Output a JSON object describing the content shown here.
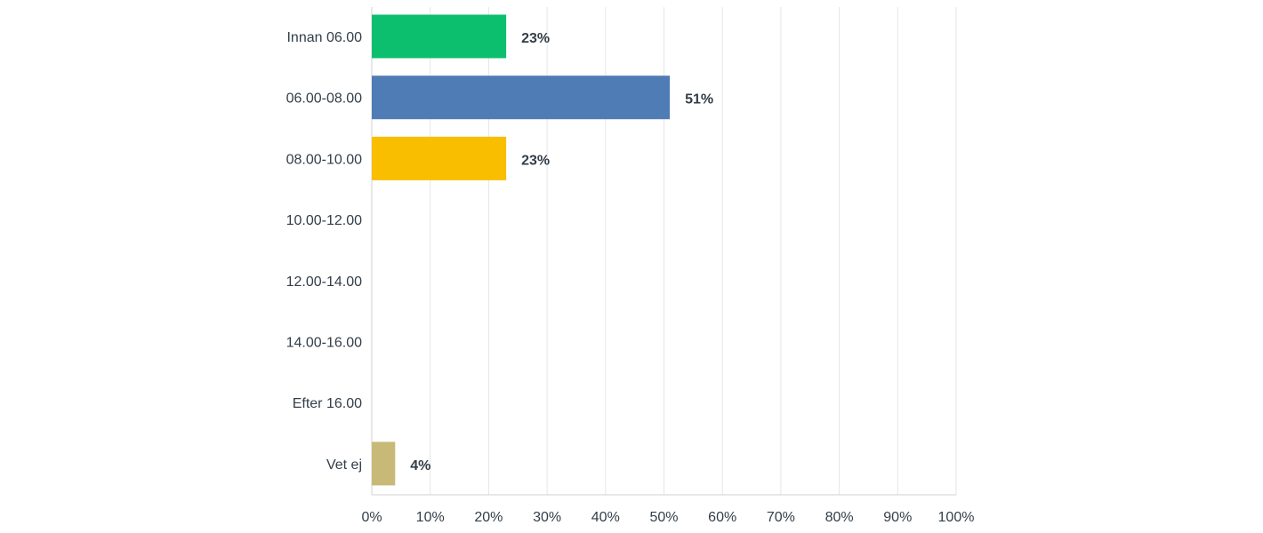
{
  "chart_data": {
    "type": "bar",
    "orientation": "horizontal",
    "categories": [
      "Innan 06.00",
      "06.00-08.00",
      "08.00-10.00",
      "10.00-12.00",
      "12.00-14.00",
      "14.00-16.00",
      "Efter 16.00",
      "Vet ej"
    ],
    "values": [
      23,
      51,
      23,
      0,
      0,
      0,
      0,
      4
    ],
    "data_labels": [
      "23%",
      "51%",
      "23%",
      "",
      "",
      "",
      "",
      "4%"
    ],
    "colors": [
      "#0bbf6e",
      "#507cb6",
      "#f9be00",
      "#6bc8cd",
      "#ff8b4f",
      "#7d5ba6",
      "#dd5a7a",
      "#c8b979"
    ],
    "xlim": [
      0,
      100
    ],
    "x_ticks": [
      "0%",
      "10%",
      "20%",
      "30%",
      "40%",
      "50%",
      "60%",
      "70%",
      "80%",
      "90%",
      "100%"
    ],
    "grid": true,
    "title": "",
    "xlabel": "",
    "ylabel": ""
  }
}
